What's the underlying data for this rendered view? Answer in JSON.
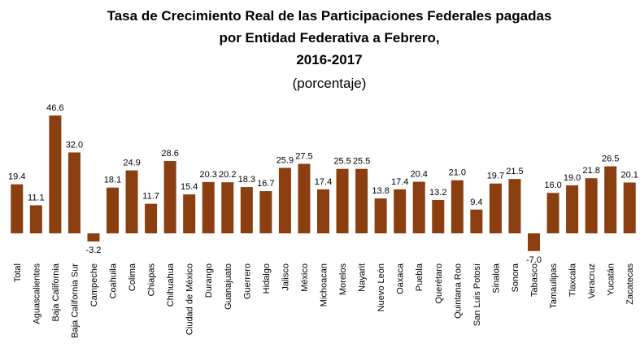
{
  "chart_data": {
    "type": "bar",
    "title": [
      "Tasa de Crecimiento Real de las Participaciones Federales pagadas",
      "por Entidad Federativa a Febrero,",
      "2016-2017"
    ],
    "subtitle": "(porcentaje)",
    "categories": [
      "Total",
      "Aguascalientes",
      "Baja California",
      "Baja California Sur",
      "Campeche",
      "Coahuila",
      "Colima",
      "Chiapas",
      "Chihuahua",
      "Ciudad de México",
      "Durango",
      "Guanajuato",
      "Guerrero",
      "Hidalgo",
      "Jalisco",
      "México",
      "Michoacan",
      "Morelos",
      "Nayarit",
      "Nuevo León",
      "Oaxaca",
      "Puebla",
      "Querétaro",
      "Quintana Roo",
      "San Luis Potosí",
      "Sinaloa",
      "Sonora",
      "Tabasco",
      "Tamaulipas",
      "Tlaxcala",
      "Veracruz",
      "Yucatán",
      "Zacatecas"
    ],
    "values": [
      19.4,
      11.1,
      46.6,
      32.0,
      -3.2,
      18.1,
      24.9,
      11.7,
      28.6,
      15.4,
      20.3,
      20.2,
      18.3,
      16.7,
      25.9,
      27.5,
      17.4,
      25.5,
      25.5,
      13.8,
      17.4,
      20.4,
      13.2,
      21.0,
      9.4,
      19.7,
      21.5,
      -7.0,
      16.0,
      19.0,
      21.8,
      26.5,
      20.1
    ],
    "value_labels": [
      "19.4",
      "11.1",
      "46.6",
      "32.0",
      "-3.2",
      "18.1",
      "24.9",
      "11.7",
      "28.6",
      "15.4",
      "20.3",
      "20.2",
      "18.3",
      "16.7",
      "25.9",
      "27.5",
      "17.4",
      "25.5",
      "25.5",
      "13.8",
      "17.4",
      "20.4",
      "13.2",
      "21.0",
      "9.4",
      "19.7",
      "21.5",
      "-7.0",
      "16.0",
      "19.0",
      "21.8",
      "26.5",
      "20.1"
    ],
    "color": "#8b3e0f"
  }
}
